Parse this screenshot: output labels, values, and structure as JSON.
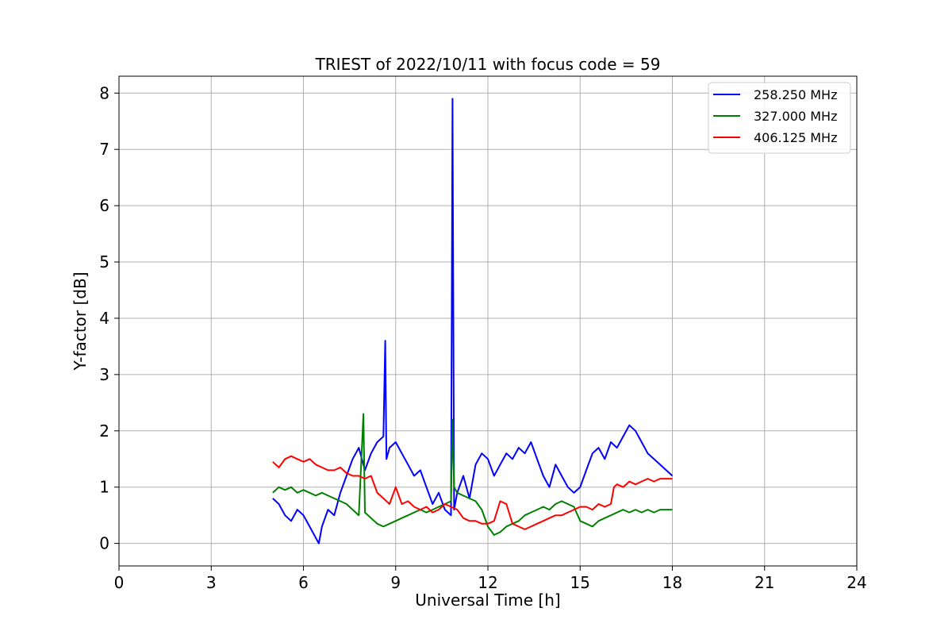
{
  "chart_data": {
    "type": "line",
    "title": "TRIEST of 2022/10/11 with focus code = 59",
    "xlabel": "Universal Time [h]",
    "ylabel": "Y-factor [dB]",
    "xlim": [
      0,
      24
    ],
    "ylim": [
      -0.4,
      8.3
    ],
    "xticks": [
      0,
      3,
      6,
      9,
      12,
      15,
      18,
      21,
      24
    ],
    "yticks": [
      0,
      1,
      2,
      3,
      4,
      5,
      6,
      7,
      8
    ],
    "grid": true,
    "legend_position": "top-right",
    "series": [
      {
        "name": "258.250 MHz",
        "color": "#0000ff",
        "x": [
          5.0,
          5.2,
          5.4,
          5.6,
          5.8,
          6.0,
          6.2,
          6.4,
          6.5,
          6.6,
          6.8,
          7.0,
          7.2,
          7.4,
          7.6,
          7.8,
          8.0,
          8.2,
          8.4,
          8.6,
          8.66,
          8.7,
          8.8,
          9.0,
          9.2,
          9.4,
          9.6,
          9.8,
          10.0,
          10.2,
          10.4,
          10.6,
          10.8,
          10.85,
          10.9,
          11.0,
          11.2,
          11.4,
          11.6,
          11.8,
          12.0,
          12.2,
          12.4,
          12.6,
          12.8,
          13.0,
          13.2,
          13.4,
          13.6,
          13.8,
          14.0,
          14.2,
          14.4,
          14.6,
          14.8,
          15.0,
          15.2,
          15.4,
          15.6,
          15.8,
          16.0,
          16.2,
          16.4,
          16.6,
          16.8,
          17.0,
          17.2,
          17.4,
          17.6,
          17.8,
          18.0
        ],
        "values": [
          0.8,
          0.7,
          0.5,
          0.4,
          0.6,
          0.5,
          0.3,
          0.1,
          0.0,
          0.3,
          0.6,
          0.5,
          0.9,
          1.2,
          1.5,
          1.7,
          1.3,
          1.6,
          1.8,
          1.9,
          3.6,
          1.5,
          1.7,
          1.8,
          1.6,
          1.4,
          1.2,
          1.3,
          1.0,
          0.7,
          0.9,
          0.6,
          0.5,
          7.9,
          0.6,
          0.9,
          1.2,
          0.8,
          1.4,
          1.6,
          1.5,
          1.2,
          1.4,
          1.6,
          1.5,
          1.7,
          1.6,
          1.8,
          1.5,
          1.2,
          1.0,
          1.4,
          1.2,
          1.0,
          0.9,
          1.0,
          1.3,
          1.6,
          1.7,
          1.5,
          1.8,
          1.7,
          1.9,
          2.1,
          2.0,
          1.8,
          1.6,
          1.5,
          1.4,
          1.3,
          1.2
        ]
      },
      {
        "name": "327.000 MHz",
        "color": "#008000",
        "x": [
          5.0,
          5.2,
          5.4,
          5.6,
          5.8,
          6.0,
          6.2,
          6.4,
          6.6,
          6.8,
          7.0,
          7.2,
          7.4,
          7.6,
          7.8,
          7.95,
          8.0,
          8.2,
          8.4,
          8.6,
          8.8,
          9.0,
          9.2,
          9.4,
          9.6,
          9.8,
          10.0,
          10.2,
          10.4,
          10.6,
          10.8,
          10.85,
          10.9,
          11.0,
          11.2,
          11.4,
          11.6,
          11.8,
          12.0,
          12.2,
          12.4,
          12.6,
          12.8,
          13.0,
          13.2,
          13.4,
          13.6,
          13.8,
          14.0,
          14.2,
          14.4,
          14.6,
          14.8,
          15.0,
          15.2,
          15.4,
          15.6,
          15.8,
          16.0,
          16.2,
          16.4,
          16.6,
          16.8,
          17.0,
          17.2,
          17.4,
          17.6,
          17.8,
          18.0
        ],
        "values": [
          0.9,
          1.0,
          0.95,
          1.0,
          0.9,
          0.95,
          0.9,
          0.85,
          0.9,
          0.85,
          0.8,
          0.75,
          0.7,
          0.6,
          0.5,
          2.3,
          0.55,
          0.45,
          0.35,
          0.3,
          0.35,
          0.4,
          0.45,
          0.5,
          0.55,
          0.6,
          0.55,
          0.6,
          0.65,
          0.7,
          0.75,
          2.2,
          1.0,
          0.9,
          0.85,
          0.8,
          0.75,
          0.6,
          0.3,
          0.15,
          0.2,
          0.3,
          0.35,
          0.4,
          0.5,
          0.55,
          0.6,
          0.65,
          0.6,
          0.7,
          0.75,
          0.7,
          0.65,
          0.4,
          0.35,
          0.3,
          0.4,
          0.45,
          0.5,
          0.55,
          0.6,
          0.55,
          0.6,
          0.55,
          0.6,
          0.55,
          0.6,
          0.6,
          0.6
        ]
      },
      {
        "name": "406.125 MHz",
        "color": "#ff0000",
        "x": [
          5.0,
          5.2,
          5.4,
          5.6,
          5.8,
          6.0,
          6.2,
          6.4,
          6.6,
          6.8,
          7.0,
          7.2,
          7.4,
          7.6,
          7.8,
          8.0,
          8.2,
          8.4,
          8.6,
          8.8,
          9.0,
          9.2,
          9.4,
          9.6,
          9.8,
          10.0,
          10.2,
          10.4,
          10.6,
          10.8,
          11.0,
          11.2,
          11.4,
          11.6,
          11.8,
          12.0,
          12.2,
          12.4,
          12.6,
          12.8,
          13.0,
          13.2,
          13.4,
          13.6,
          13.8,
          14.0,
          14.2,
          14.4,
          14.6,
          14.8,
          15.0,
          15.2,
          15.4,
          15.6,
          15.8,
          16.0,
          16.1,
          16.2,
          16.4,
          16.6,
          16.8,
          17.0,
          17.2,
          17.4,
          17.6,
          17.8,
          18.0
        ],
        "values": [
          1.45,
          1.35,
          1.5,
          1.55,
          1.5,
          1.45,
          1.5,
          1.4,
          1.35,
          1.3,
          1.3,
          1.35,
          1.25,
          1.2,
          1.2,
          1.15,
          1.2,
          0.9,
          0.8,
          0.7,
          1.0,
          0.7,
          0.75,
          0.65,
          0.6,
          0.65,
          0.55,
          0.6,
          0.7,
          0.65,
          0.6,
          0.45,
          0.4,
          0.4,
          0.35,
          0.35,
          0.4,
          0.75,
          0.7,
          0.35,
          0.3,
          0.25,
          0.3,
          0.35,
          0.4,
          0.45,
          0.5,
          0.5,
          0.55,
          0.6,
          0.65,
          0.65,
          0.6,
          0.7,
          0.65,
          0.7,
          1.0,
          1.05,
          1.0,
          1.1,
          1.05,
          1.1,
          1.15,
          1.1,
          1.15,
          1.15,
          1.15
        ]
      }
    ]
  }
}
